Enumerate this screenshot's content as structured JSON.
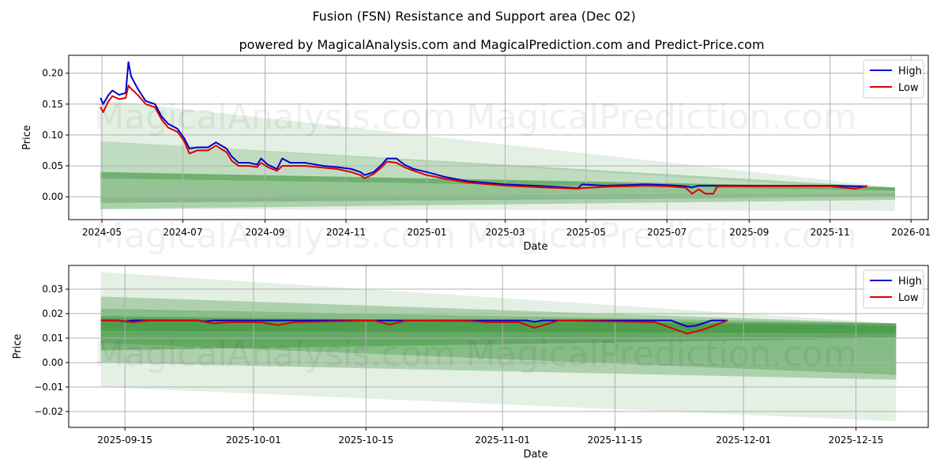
{
  "title": "Fusion (FSN) Resistance and Support area (Dec 02)",
  "subtitle": "powered by MagicalAnalysis.com and MagicalPrediction.com and Predict-Price.com",
  "watermarks": [
    "MagicalAnalysis.com",
    "MagicalPrediction.com"
  ],
  "colors": {
    "high": "#0000cc",
    "low": "#dd0000",
    "band": "#2e8b2e"
  },
  "chart_data": [
    {
      "type": "line",
      "xlabel": "Date",
      "ylabel": "Price",
      "xlim": [
        "2024-04-06",
        "2026-01-14"
      ],
      "ylim": [
        -0.037,
        0.229
      ],
      "xticks": [
        "2024-05",
        "2024-07",
        "2024-09",
        "2024-11",
        "2025-01",
        "2025-03",
        "2025-05",
        "2025-07",
        "2025-09",
        "2025-11",
        "2026-01"
      ],
      "xtick_dates": [
        "2024-05-01",
        "2024-07-01",
        "2024-09-01",
        "2024-11-01",
        "2025-01-01",
        "2025-03-01",
        "2025-05-01",
        "2025-07-01",
        "2025-09-01",
        "2025-11-01",
        "2026-01-01"
      ],
      "yticks": [
        "0.00",
        "0.05",
        "0.10",
        "0.15",
        "0.20"
      ],
      "ytick_values": [
        0,
        0.05,
        0.1,
        0.15,
        0.2
      ],
      "legend": {
        "position": "top-right",
        "entries": [
          "High",
          "Low"
        ]
      },
      "grid": true,
      "bands": [
        {
          "start": "2024-04-30",
          "end": "2025-12-20",
          "top": [
            0.157,
            0.015
          ],
          "bottom": [
            0.09,
            0.01
          ],
          "opacity": 0.13
        },
        {
          "start": "2024-04-30",
          "end": "2025-12-20",
          "top": [
            0.09,
            0.015
          ],
          "bottom": [
            -0.02,
            -0.005
          ],
          "opacity": 0.3
        },
        {
          "start": "2024-04-30",
          "end": "2025-12-20",
          "top": [
            0.04,
            0.015
          ],
          "bottom": [
            -0.01,
            0.0
          ],
          "opacity": 0.3
        },
        {
          "start": "2024-04-30",
          "end": "2025-12-20",
          "top": [
            0.04,
            0.015
          ],
          "bottom": [
            0.03,
            0.01
          ],
          "opacity": 0.35
        },
        {
          "start": "2024-04-30",
          "end": "2025-12-20",
          "top": [
            0.0,
            0.005
          ],
          "bottom": [
            -0.02,
            -0.023
          ],
          "opacity": 0.13
        }
      ],
      "series": [
        {
          "name": "High",
          "dates": [
            "2024-04-30",
            "2024-05-02",
            "2024-05-06",
            "2024-05-09",
            "2024-05-14",
            "2024-05-19",
            "2024-05-21",
            "2024-05-23",
            "2024-05-28",
            "2024-06-03",
            "2024-06-10",
            "2024-06-15",
            "2024-06-20",
            "2024-06-27",
            "2024-07-02",
            "2024-07-06",
            "2024-07-12",
            "2024-07-20",
            "2024-07-26",
            "2024-08-03",
            "2024-08-07",
            "2024-08-12",
            "2024-08-20",
            "2024-08-26",
            "2024-08-29",
            "2024-09-03",
            "2024-09-10",
            "2024-09-14",
            "2024-09-20",
            "2024-10-01",
            "2024-10-15",
            "2024-10-25",
            "2024-11-05",
            "2024-11-12",
            "2024-11-15",
            "2024-11-22",
            "2024-11-28",
            "2024-12-02",
            "2024-12-09",
            "2024-12-15",
            "2024-12-22",
            "2025-01-01",
            "2025-01-15",
            "2025-02-01",
            "2025-03-01",
            "2025-04-01",
            "2025-04-25",
            "2025-04-28",
            "2025-05-15",
            "2025-06-01",
            "2025-06-15",
            "2025-07-01",
            "2025-07-15",
            "2025-07-20",
            "2025-07-25",
            "2025-07-30",
            "2025-08-05",
            "2025-08-08",
            "2025-09-01",
            "2025-10-01",
            "2025-11-01",
            "2025-11-20",
            "2025-11-29"
          ],
          "values": [
            0.16,
            0.15,
            0.165,
            0.172,
            0.165,
            0.168,
            0.218,
            0.195,
            0.175,
            0.155,
            0.15,
            0.13,
            0.118,
            0.11,
            0.095,
            0.078,
            0.08,
            0.08,
            0.088,
            0.078,
            0.065,
            0.055,
            0.055,
            0.052,
            0.062,
            0.052,
            0.045,
            0.062,
            0.055,
            0.055,
            0.05,
            0.048,
            0.045,
            0.04,
            0.035,
            0.04,
            0.052,
            0.062,
            0.062,
            0.052,
            0.045,
            0.04,
            0.032,
            0.025,
            0.02,
            0.017,
            0.014,
            0.02,
            0.018,
            0.019,
            0.02,
            0.019,
            0.017,
            0.015,
            0.018,
            0.018,
            0.018,
            0.018,
            0.018,
            0.018,
            0.018,
            0.017,
            0.017
          ]
        },
        {
          "name": "Low",
          "dates": [
            "2024-04-30",
            "2024-05-02",
            "2024-05-06",
            "2024-05-09",
            "2024-05-14",
            "2024-05-19",
            "2024-05-21",
            "2024-05-23",
            "2024-05-28",
            "2024-06-03",
            "2024-06-10",
            "2024-06-15",
            "2024-06-20",
            "2024-06-27",
            "2024-07-02",
            "2024-07-06",
            "2024-07-12",
            "2024-07-20",
            "2024-07-26",
            "2024-08-03",
            "2024-08-07",
            "2024-08-12",
            "2024-08-20",
            "2024-08-26",
            "2024-08-29",
            "2024-09-03",
            "2024-09-10",
            "2024-09-14",
            "2024-09-20",
            "2024-10-01",
            "2024-10-15",
            "2024-10-25",
            "2024-11-05",
            "2024-11-12",
            "2024-11-15",
            "2024-11-22",
            "2024-11-28",
            "2024-12-02",
            "2024-12-09",
            "2024-12-15",
            "2024-12-22",
            "2025-01-01",
            "2025-01-15",
            "2025-02-01",
            "2025-03-01",
            "2025-04-01",
            "2025-04-25",
            "2025-04-28",
            "2025-05-15",
            "2025-06-01",
            "2025-06-15",
            "2025-07-01",
            "2025-07-15",
            "2025-07-20",
            "2025-07-25",
            "2025-07-30",
            "2025-08-05",
            "2025-08-08",
            "2025-09-01",
            "2025-10-01",
            "2025-11-01",
            "2025-11-20",
            "2025-11-29"
          ],
          "values": [
            0.145,
            0.137,
            0.155,
            0.163,
            0.158,
            0.16,
            0.18,
            0.175,
            0.165,
            0.15,
            0.145,
            0.125,
            0.112,
            0.105,
            0.09,
            0.07,
            0.075,
            0.075,
            0.083,
            0.072,
            0.058,
            0.05,
            0.05,
            0.048,
            0.055,
            0.048,
            0.042,
            0.05,
            0.05,
            0.05,
            0.047,
            0.045,
            0.04,
            0.035,
            0.03,
            0.037,
            0.048,
            0.057,
            0.055,
            0.048,
            0.042,
            0.035,
            0.029,
            0.023,
            0.018,
            0.015,
            0.013,
            0.014,
            0.016,
            0.017,
            0.018,
            0.017,
            0.015,
            0.005,
            0.012,
            0.005,
            0.005,
            0.017,
            0.017,
            0.017,
            0.017,
            0.013,
            0.017
          ]
        }
      ]
    },
    {
      "type": "line",
      "xlabel": "Date",
      "ylabel": "Price",
      "xlim": [
        "2025-09-08",
        "2025-12-24"
      ],
      "ylim": [
        -0.0265,
        0.0397
      ],
      "xticks": [
        "2025-09-15",
        "2025-10-01",
        "2025-10-15",
        "2025-11-01",
        "2025-11-15",
        "2025-12-01",
        "2025-12-15"
      ],
      "yticks": [
        "−0.02",
        "−0.01",
        "0.00",
        "0.01",
        "0.02",
        "0.03"
      ],
      "ytick_values": [
        -0.02,
        -0.01,
        0,
        0.01,
        0.02,
        0.03
      ],
      "legend": {
        "position": "top-right",
        "entries": [
          "High",
          "Low"
        ]
      },
      "grid": true,
      "bands": [
        {
          "start": "2025-09-12",
          "end": "2025-12-20",
          "top": [
            0.037,
            0.016
          ],
          "bottom": [
            -0.01,
            -0.024
          ],
          "opacity": 0.13
        },
        {
          "start": "2025-09-12",
          "end": "2025-12-20",
          "top": [
            0.027,
            0.016
          ],
          "bottom": [
            0.0,
            -0.007
          ],
          "opacity": 0.3
        },
        {
          "start": "2025-09-12",
          "end": "2025-12-20",
          "top": [
            0.022,
            0.016
          ],
          "bottom": [
            0.008,
            -0.005
          ],
          "opacity": 0.3
        },
        {
          "start": "2025-09-12",
          "end": "2025-12-20",
          "top": [
            0.019,
            0.015
          ],
          "bottom": [
            0.005,
            0.01
          ],
          "opacity": 0.4
        },
        {
          "start": "2025-09-12",
          "end": "2025-12-20",
          "top": [
            0.018,
            0.016
          ],
          "bottom": [
            0.013,
            0.012
          ],
          "opacity": 0.4
        }
      ],
      "series": [
        {
          "name": "High",
          "dates": [
            "2025-09-12",
            "2025-09-14",
            "2025-09-15",
            "2025-09-16",
            "2025-09-24",
            "2025-09-25",
            "2025-09-26",
            "2025-11-04",
            "2025-11-05",
            "2025-11-06",
            "2025-11-22",
            "2025-11-24",
            "2025-11-25",
            "2025-11-27",
            "2025-11-29"
          ],
          "values": [
            0.0172,
            0.0172,
            0.0168,
            0.0172,
            0.0172,
            0.0168,
            0.0172,
            0.0172,
            0.0167,
            0.0172,
            0.0172,
            0.0147,
            0.015,
            0.0172,
            0.0172
          ]
        },
        {
          "name": "Low",
          "dates": [
            "2025-09-12",
            "2025-09-14",
            "2025-09-16",
            "2025-09-18",
            "2025-09-24",
            "2025-09-26",
            "2025-09-28",
            "2025-10-02",
            "2025-10-04",
            "2025-10-06",
            "2025-10-16",
            "2025-10-18",
            "2025-10-20",
            "2025-10-28",
            "2025-10-30",
            "2025-11-03",
            "2025-11-05",
            "2025-11-08",
            "2025-11-20",
            "2025-11-24",
            "2025-11-26",
            "2025-11-29"
          ],
          "values": [
            0.0172,
            0.0172,
            0.0165,
            0.0172,
            0.0172,
            0.016,
            0.0165,
            0.0165,
            0.0153,
            0.0165,
            0.0172,
            0.0155,
            0.0172,
            0.017,
            0.0165,
            0.0165,
            0.0142,
            0.0172,
            0.0165,
            0.0118,
            0.0135,
            0.0172
          ]
        }
      ]
    }
  ]
}
